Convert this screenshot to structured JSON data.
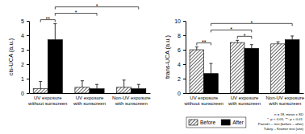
{
  "chart_data": [
    {
      "type": "bar",
      "y_label": "cis-UCA (a.u.)",
      "categories": [
        "UV exposure\nwithout sunscreen",
        "UV exposure\nwith sunscreen",
        "Non-UV exposure\nwith sunscreen"
      ],
      "series": [
        {
          "color": "#000000",
          "line_style": "hatch",
          "values": [
            0.3,
            0.4,
            0.4
          ],
          "errors": [
            0.5,
            0.45,
            0.5
          ]
        },
        {
          "color": "#000000",
          "line_style": "solid",
          "values": [
            3.7,
            0.3,
            0.3
          ],
          "errors": [
            1.1,
            0.3,
            0.3
          ]
        }
      ],
      "ylim": [
        0,
        5
      ],
      "yticks": [
        0,
        1,
        2,
        3,
        4,
        5
      ],
      "brackets": [
        {
          "label": "**",
          "from": [
            0,
            0
          ],
          "to": [
            0,
            1
          ]
        },
        {
          "label": "*",
          "from": [
            0,
            1
          ],
          "to": [
            1,
            1
          ]
        },
        {
          "label": "*",
          "from": [
            0,
            1
          ],
          "to": [
            2,
            1
          ]
        }
      ]
    },
    {
      "type": "bar",
      "y_label": "trans-UCA (a.u.)",
      "categories": [
        "UV exposure\nwithout sunscreen",
        "UV exposure\nwith sunscreen",
        "Non-UV exposure\nwith sunscreen"
      ],
      "series": [
        {
          "name": "Before",
          "color": "#000000",
          "line_style": "hatch",
          "values": [
            6.0,
            7.0,
            6.8
          ],
          "errors": [
            0.4,
            0.3,
            0.3
          ]
        },
        {
          "name": "After",
          "color": "#000000",
          "line_style": "solid",
          "values": [
            2.7,
            6.2,
            7.4
          ],
          "errors": [
            1.4,
            0.5,
            0.5
          ]
        }
      ],
      "ylim": [
        0,
        10
      ],
      "yticks": [
        0,
        2,
        4,
        6,
        8,
        10
      ],
      "brackets": [
        {
          "label": "**",
          "from": [
            0,
            0
          ],
          "to": [
            0,
            1
          ]
        },
        {
          "label": "*",
          "from": [
            1,
            0
          ],
          "to": [
            1,
            1
          ]
        },
        {
          "label": "*",
          "from": [
            0,
            1
          ],
          "to": [
            1,
            1
          ]
        },
        {
          "label": "*",
          "from": [
            0,
            1
          ],
          "to": [
            2,
            1
          ]
        }
      ],
      "legend": "bottom",
      "notes": [
        "n = 18, mean ± SD",
        "*: p < 0.05, **: p < 0.01.",
        "Paired t – test (before – after)",
        "Tukey – Kramer test (site)"
      ]
    }
  ]
}
